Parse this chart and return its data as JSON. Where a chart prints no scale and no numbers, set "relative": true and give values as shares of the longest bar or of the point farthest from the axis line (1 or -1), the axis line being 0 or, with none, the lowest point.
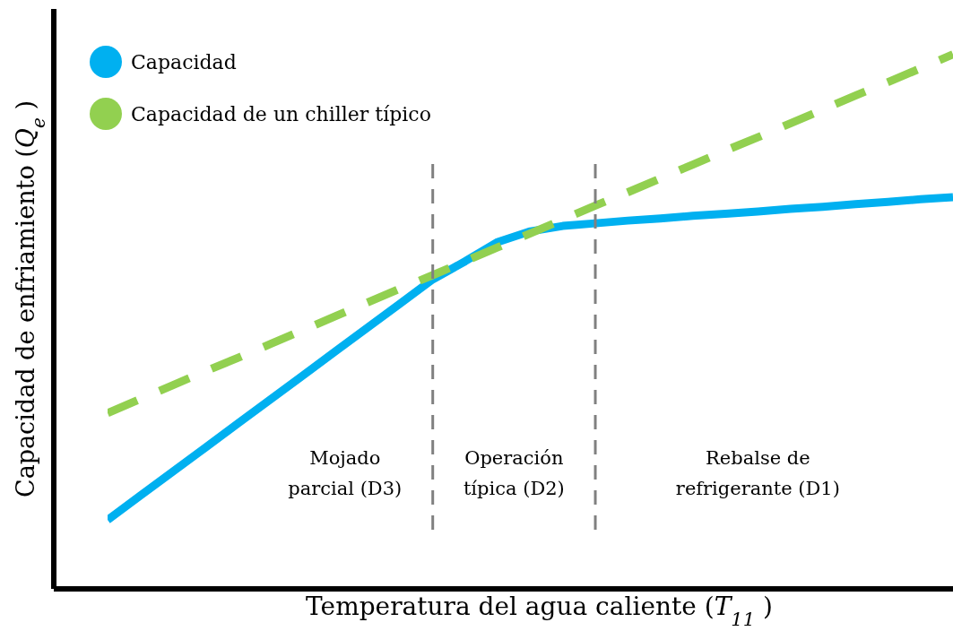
{
  "chart_data": {
    "type": "line",
    "relative": true,
    "xlabel": "Temperatura del agua caliente (T$_{11}$)",
    "ylabel": "Capacidad de enfriamiento (Q$_{e}$)",
    "categories": [
      null,
      null,
      null,
      null,
      null,
      null,
      null,
      null,
      null,
      null,
      null,
      null,
      null,
      null,
      null,
      null,
      null,
      null,
      null,
      null,
      null,
      null,
      null,
      null,
      null,
      null,
      null
    ],
    "series": [
      {
        "name": "Capacidad",
        "color": "#00b0f0",
        "line_style": "solid",
        "values": [
          0.129,
          0.174,
          0.219,
          0.264,
          0.309,
          0.354,
          0.399,
          0.444,
          0.489,
          0.534,
          0.579,
          0.613,
          0.649,
          0.669,
          0.679,
          0.684,
          0.689,
          0.693,
          0.698,
          0.702,
          0.706,
          0.711,
          0.715,
          0.72,
          0.724,
          0.729,
          0.733
        ]
      },
      {
        "name": "Capacidad de un chiller típico",
        "color": "#92d050",
        "line_style": "dashed",
        "values": [
          0.329,
          0.355,
          0.381,
          0.407,
          0.432,
          0.458,
          0.484,
          0.51,
          0.536,
          0.562,
          0.587,
          0.613,
          0.639,
          0.665,
          0.691,
          0.717,
          0.742,
          0.768,
          0.794,
          0.82,
          0.845,
          0.871,
          0.897,
          0.923,
          0.948,
          0.974,
          1.0
        ]
      }
    ],
    "annotations": [
      "Mojado\nparcial (D3)",
      "Operación\ntípica (D2)",
      "Rebalse de\nrefrigerante (D1)"
    ],
    "legend": "top left",
    "grid": false,
    "marker": "none"
  }
}
